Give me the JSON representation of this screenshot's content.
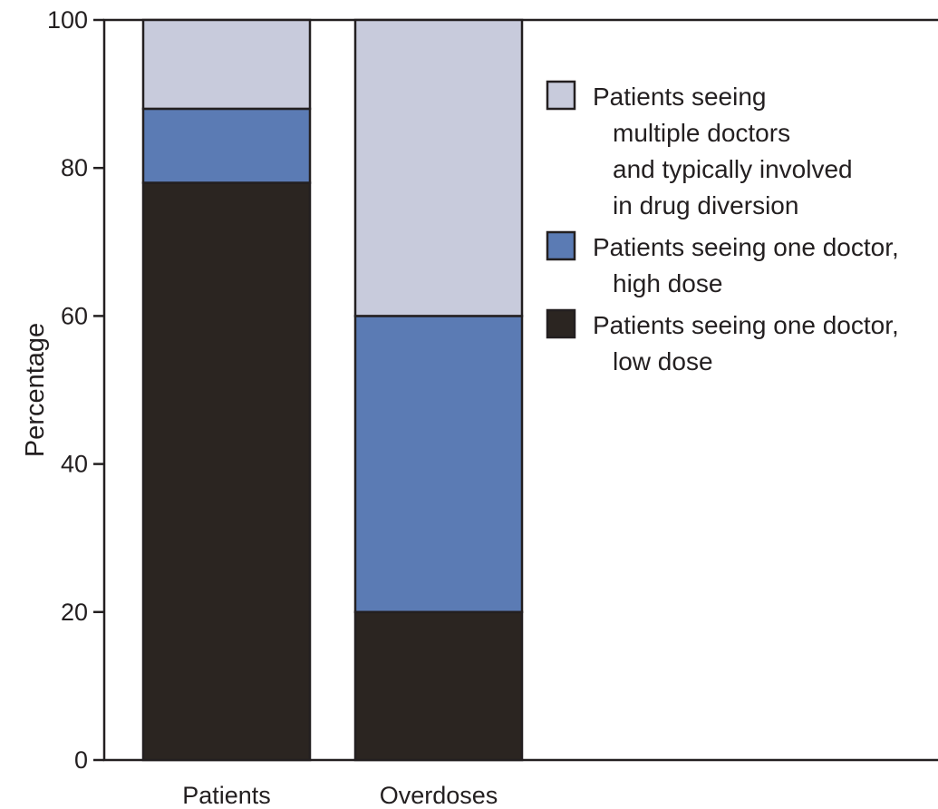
{
  "chart_data": {
    "type": "bar",
    "stacked": true,
    "categories": [
      "Patients",
      "Overdoses"
    ],
    "series": [
      {
        "name": "Patients seeing one doctor, low dose",
        "values": [
          78,
          20
        ],
        "color": "#2b2521"
      },
      {
        "name": "Patients seeing one doctor, high dose",
        "values": [
          10,
          40
        ],
        "color": "#5b7bb4"
      },
      {
        "name": "Patients seeing multiple doctors and typically involved in drug diversion",
        "values": [
          12,
          40
        ],
        "color": "#c8cbdc"
      }
    ],
    "ylabel": "Percentage",
    "ylim": [
      0,
      100
    ],
    "yticks": [
      0,
      20,
      40,
      60,
      80,
      100
    ],
    "grid": false,
    "legend": {
      "placement": "top-right",
      "order": [
        2,
        1,
        0
      ],
      "entries": [
        {
          "lines": [
            "Patients seeing one doctor,",
            "low dose"
          ]
        },
        {
          "lines": [
            "Patients seeing one doctor,",
            "high dose"
          ]
        },
        {
          "lines": [
            "Patients seeing",
            "multiple doctors",
            "and typically involved",
            "in drug diversion"
          ]
        }
      ]
    }
  }
}
